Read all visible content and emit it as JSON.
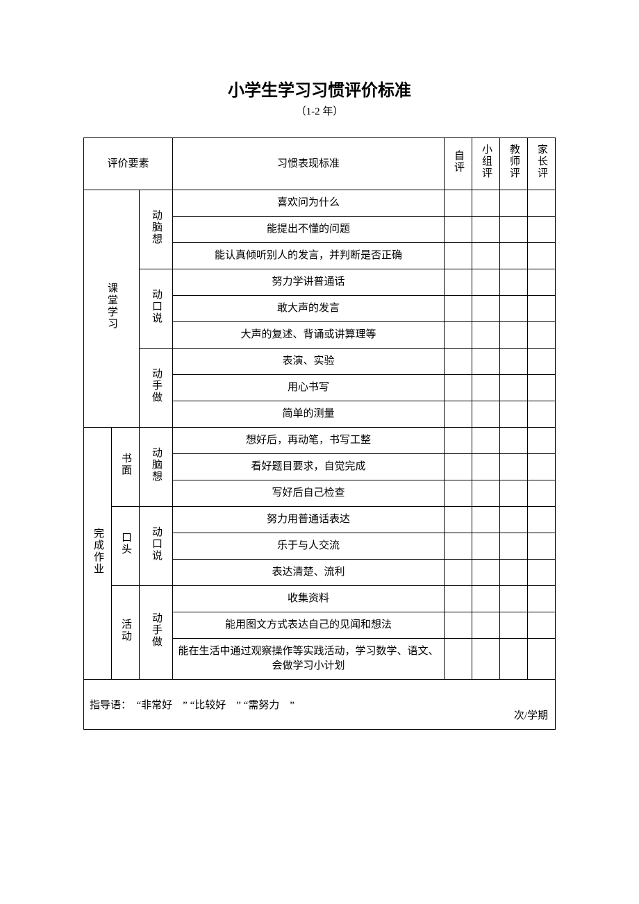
{
  "title": "小学生学习习惯评价标准",
  "subtitle": "（1-2 年）",
  "header": {
    "element": "评价要素",
    "standard": "习惯表现标准",
    "self": "自评",
    "group": "小组评",
    "teacher": "教师评",
    "parent": "家长评"
  },
  "sec1": {
    "name": "课堂学习",
    "g1": {
      "name": "动脑想",
      "r1": "喜欢问为什么",
      "r2": "能提出不懂的问题",
      "r3": "能认真倾听别人的发言，并判断是否正确"
    },
    "g2": {
      "name": "动口说",
      "r1": "努力学讲普通话",
      "r2": "敢大声的发言",
      "r3": "大声的复述、背诵或讲算理等"
    },
    "g3": {
      "name": "动手做",
      "r1": "表演、实验",
      "r2": "用心书写",
      "r3": "简单的测量"
    }
  },
  "sec2": {
    "name": "完成作业",
    "sub1": {
      "name": "书面",
      "g": {
        "name": "动脑想",
        "r1": "想好后，再动笔，书写工整",
        "r2": "看好题目要求，自觉完成",
        "r3": "写好后自己检查"
      }
    },
    "sub2": {
      "name": "口头",
      "g": {
        "name": "动口说",
        "r1": "努力用普通话表达",
        "r2": "乐于与人交流",
        "r3": "表达清楚、流利"
      }
    },
    "sub3": {
      "name": "活动",
      "g": {
        "name": "动手做",
        "r1": "收集资料",
        "r2": "能用图文方式表达自己的见闻和想法",
        "r3": "能在生活中通过观察操作等实践活动，学习数学、语文、会做学习小计划"
      }
    }
  },
  "footer": {
    "guide": "指导语：  “非常好    ” “比较好    ” “需努力    ”",
    "freq": "次/学期"
  },
  "style": {
    "font_family": "SimSun",
    "title_fontsize": 24,
    "body_fontsize": 15,
    "border_color": "#000000",
    "background_color": "#ffffff",
    "text_color": "#000000"
  }
}
